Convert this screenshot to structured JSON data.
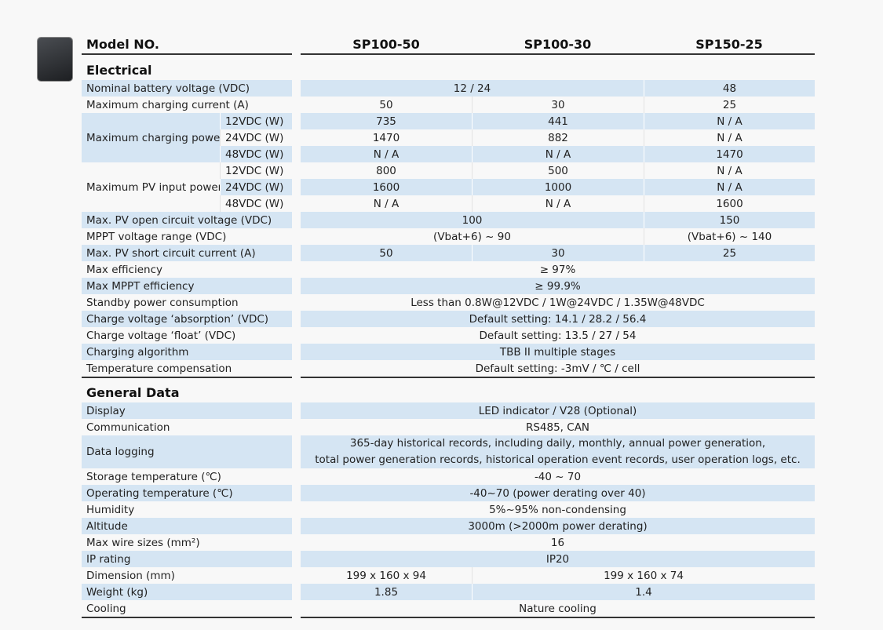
{
  "header": {
    "label": "Model NO.",
    "models": [
      "SP100-50",
      "SP100-30",
      "SP150-25"
    ]
  },
  "sections": [
    {
      "title": "Electrical",
      "rows": [
        {
          "label": "Nominal battery voltage (VDC)",
          "values": [
            "12 / 24",
            "48"
          ]
        },
        {
          "label": "Maximum charging current (A)",
          "values": [
            "50",
            "30",
            "25"
          ]
        },
        {
          "label": "Maximum charging power",
          "subs": [
            {
              "label": "12VDC (W)",
              "values": [
                "735",
                "441",
                "N / A"
              ]
            },
            {
              "label": "24VDC (W)",
              "values": [
                "1470",
                "882",
                "N / A"
              ]
            },
            {
              "label": "48VDC (W)",
              "values": [
                "N / A",
                "N / A",
                "1470"
              ]
            }
          ]
        },
        {
          "label": "Maximum PV input power",
          "subs": [
            {
              "label": "12VDC (W)",
              "values": [
                "800",
                "500",
                "N / A"
              ]
            },
            {
              "label": "24VDC (W)",
              "values": [
                "1600",
                "1000",
                "N / A"
              ]
            },
            {
              "label": "48VDC (W)",
              "values": [
                "N / A",
                "N / A",
                "1600"
              ]
            }
          ]
        },
        {
          "label": "Max. PV open circuit voltage (VDC)",
          "values": [
            "100",
            "150"
          ]
        },
        {
          "label": "MPPT voltage range (VDC)",
          "values": [
            "(Vbat+6) ~ 90",
            "(Vbat+6) ~ 140"
          ]
        },
        {
          "label": "Max. PV short circuit current (A)",
          "values": [
            "50",
            "30",
            "25"
          ]
        },
        {
          "label": "Max efficiency",
          "values": [
            "≥ 97%"
          ]
        },
        {
          "label": "Max MPPT efficiency",
          "values": [
            "≥ 99.9%"
          ]
        },
        {
          "label": "Standby power consumption",
          "values": [
            "Less than 0.8W@12VDC / 1W@24VDC / 1.35W@48VDC"
          ]
        },
        {
          "label": "Charge  voltage  ‘absorption’ (VDC)",
          "values": [
            "Default setting: 14.1 / 28.2 / 56.4"
          ]
        },
        {
          "label": "Charge voltage ‘float’ (VDC)",
          "values": [
            "Default setting: 13.5 / 27 / 54"
          ]
        },
        {
          "label": "Charging algorithm",
          "values": [
            "TBB II multiple stages"
          ]
        },
        {
          "label": "Temperature compensation",
          "values": [
            "Default setting: -3mV / ℃ / cell"
          ]
        }
      ]
    },
    {
      "title": "General Data",
      "rows": [
        {
          "label": "Display",
          "values": [
            "LED indicator / V28 (Optional)"
          ]
        },
        {
          "label": "Communication",
          "values": [
            "RS485, CAN"
          ]
        },
        {
          "label": "Data logging",
          "lines": [
            "365-day historical records, including daily, monthly, annual power generation,",
            "total power generation records, historical operation event records, user operation logs, etc."
          ]
        },
        {
          "label": "Storage temperature (℃)",
          "values": [
            "-40 ~ 70"
          ]
        },
        {
          "label": "Operating temperature (℃)",
          "values": [
            "-40~70 (power derating over 40)"
          ]
        },
        {
          "label": "Humidity",
          "values": [
            "5%~95% non-condensing"
          ]
        },
        {
          "label": "Altitude",
          "values": [
            "3000m (>2000m power derating)"
          ]
        },
        {
          "label": "Max wire sizes (mm²)",
          "values": [
            "16"
          ]
        },
        {
          "label": "IP rating",
          "values": [
            "IP20"
          ]
        },
        {
          "label": "Dimension (mm)",
          "values": [
            "199 x 160 x 94",
            "199 x 160 x 74"
          ]
        },
        {
          "label": "Weight (kg)",
          "values": [
            "1.85",
            "1.4"
          ]
        },
        {
          "label": "Cooling",
          "values": [
            "Nature cooling"
          ]
        }
      ]
    }
  ]
}
